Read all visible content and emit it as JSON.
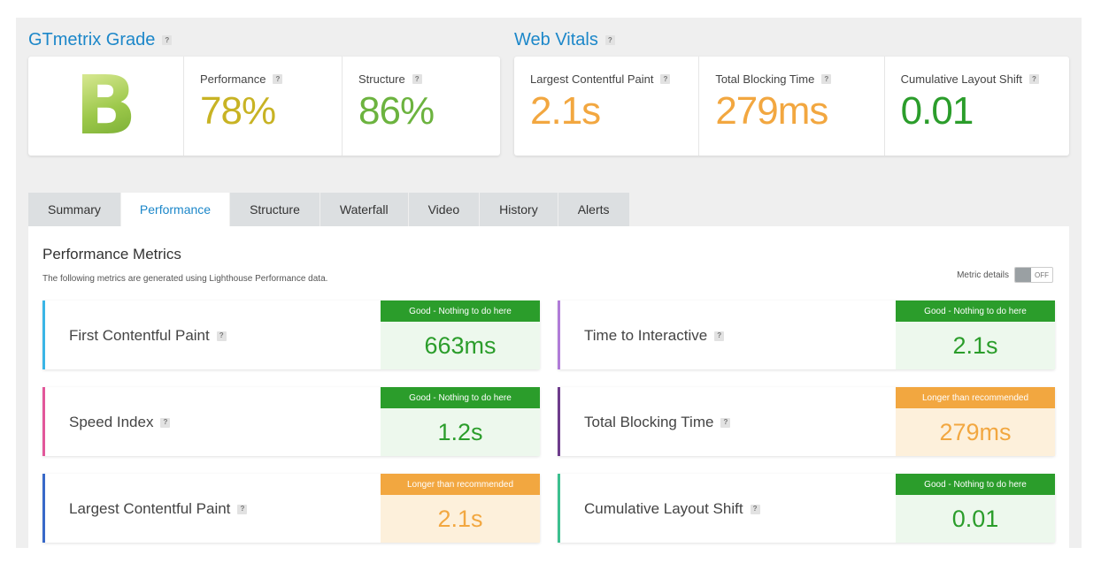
{
  "grade": {
    "title": "GTmetrix Grade",
    "letter": "B",
    "performance_label": "Performance",
    "performance_value": "78%",
    "performance_color": "#c8b324",
    "structure_label": "Structure",
    "structure_value": "86%",
    "structure_color": "#6cb33f"
  },
  "vitals": {
    "title": "Web Vitals",
    "items": [
      {
        "label": "Largest Contentful Paint",
        "value": "2.1s",
        "color": "#f2a740"
      },
      {
        "label": "Total Blocking Time",
        "value": "279ms",
        "color": "#f2a740"
      },
      {
        "label": "Cumulative Layout Shift",
        "value": "0.01",
        "color": "#2b9d2b"
      }
    ]
  },
  "help_glyph": "?",
  "tabs": [
    {
      "label": "Summary"
    },
    {
      "label": "Performance"
    },
    {
      "label": "Structure"
    },
    {
      "label": "Waterfall"
    },
    {
      "label": "Video"
    },
    {
      "label": "History"
    },
    {
      "label": "Alerts"
    }
  ],
  "active_tab": "Performance",
  "panel": {
    "title": "Performance Metrics",
    "subtitle": "The following metrics are generated using Lighthouse Performance data.",
    "metric_details_label": "Metric details",
    "toggle_state": "OFF"
  },
  "metrics": [
    {
      "name": "First Contentful Paint",
      "badge": "Good - Nothing to do here",
      "value": "663ms",
      "status": "good",
      "stripe": "#3ab5e6"
    },
    {
      "name": "Time to Interactive",
      "badge": "Good - Nothing to do here",
      "value": "2.1s",
      "status": "good",
      "stripe": "#b07cd8"
    },
    {
      "name": "Speed Index",
      "badge": "Good - Nothing to do here",
      "value": "1.2s",
      "status": "good",
      "stripe": "#e2579a"
    },
    {
      "name": "Total Blocking Time",
      "badge": "Longer than recommended",
      "value": "279ms",
      "status": "warn",
      "stripe": "#6e3c8c"
    },
    {
      "name": "Largest Contentful Paint",
      "badge": "Longer than recommended",
      "value": "2.1s",
      "status": "warn",
      "stripe": "#3869c9"
    },
    {
      "name": "Cumulative Layout Shift",
      "badge": "Good - Nothing to do here",
      "value": "0.01",
      "status": "good",
      "stripe": "#3cbf8f"
    }
  ]
}
